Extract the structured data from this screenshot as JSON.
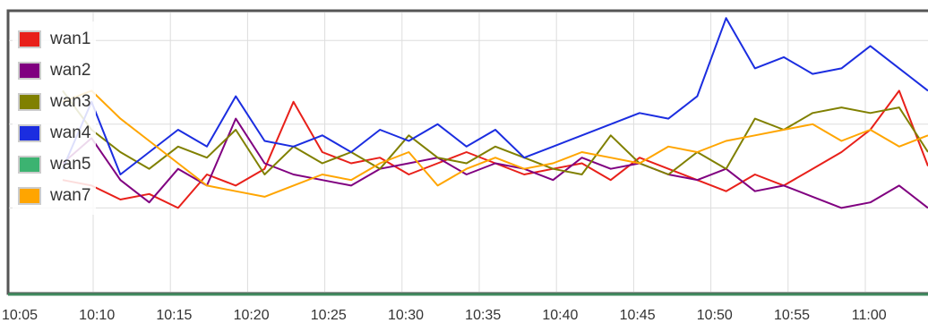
{
  "chart_data": {
    "type": "line",
    "title": "",
    "xlabel": "",
    "ylabel": "",
    "x_ticks": [
      "10:05",
      "10:10",
      "10:15",
      "10:20",
      "10:25",
      "10:30",
      "10:35",
      "10:40",
      "10:45",
      "10:50",
      "10:55",
      "11:00"
    ],
    "x_range_minutes": [
      0,
      60
    ],
    "y_range": [
      0,
      100
    ],
    "grid": true,
    "legend_position": "top-left",
    "series": [
      {
        "name": "wan1",
        "color": "#e8201a",
        "x": [
          0,
          2,
          4,
          6,
          8,
          10,
          12,
          14,
          16,
          18,
          20,
          22,
          24,
          26,
          28,
          30,
          32,
          34,
          36,
          38,
          40,
          42,
          44,
          46,
          48,
          50,
          52,
          54,
          56,
          58,
          60
        ],
        "y": [
          40,
          38,
          33,
          35,
          30,
          42,
          38,
          44,
          68,
          50,
          46,
          48,
          42,
          46,
          50,
          46,
          42,
          44,
          46,
          40,
          48,
          44,
          40,
          36,
          42,
          38,
          44,
          50,
          58,
          72,
          45
        ]
      },
      {
        "name": "wan2",
        "color": "#800080",
        "x": [
          0,
          2,
          4,
          6,
          8,
          10,
          12,
          14,
          16,
          18,
          20,
          22,
          24,
          26,
          28,
          30,
          32,
          34,
          36,
          38,
          40,
          42,
          44,
          46,
          48,
          50,
          52,
          54,
          56,
          58,
          60
        ],
        "y": [
          46,
          55,
          40,
          32,
          44,
          38,
          62,
          46,
          42,
          40,
          38,
          44,
          46,
          48,
          42,
          46,
          44,
          40,
          48,
          44,
          46,
          42,
          40,
          44,
          36,
          38,
          34,
          30,
          32,
          38,
          30
        ]
      },
      {
        "name": "wan3",
        "color": "#808000",
        "x": [
          0,
          2,
          4,
          6,
          8,
          10,
          12,
          14,
          16,
          18,
          20,
          22,
          24,
          26,
          28,
          30,
          32,
          34,
          36,
          38,
          40,
          42,
          44,
          46,
          48,
          50,
          52,
          54,
          56,
          58,
          60
        ],
        "y": [
          72,
          58,
          50,
          44,
          52,
          48,
          58,
          42,
          52,
          46,
          50,
          44,
          56,
          48,
          46,
          52,
          48,
          44,
          42,
          56,
          46,
          42,
          50,
          44,
          62,
          58,
          64,
          66,
          64,
          66,
          50
        ]
      },
      {
        "name": "wan4",
        "color": "#1b2de0",
        "x": [
          0,
          2,
          4,
          6,
          8,
          10,
          12,
          14,
          16,
          18,
          20,
          22,
          24,
          26,
          28,
          30,
          32,
          34,
          36,
          38,
          40,
          42,
          44,
          46,
          48,
          50,
          52,
          54,
          56,
          58,
          60
        ],
        "y": [
          44,
          68,
          42,
          50,
          58,
          52,
          70,
          54,
          52,
          56,
          50,
          58,
          54,
          60,
          52,
          58,
          48,
          52,
          56,
          60,
          64,
          62,
          70,
          98,
          80,
          84,
          78,
          80,
          88,
          80,
          72
        ]
      },
      {
        "name": "wan5",
        "color": "#3cb371",
        "x": [],
        "y": []
      },
      {
        "name": "wan7",
        "color": "#ffa500",
        "x": [
          0,
          2,
          4,
          6,
          8,
          10,
          12,
          14,
          16,
          18,
          20,
          22,
          24,
          26,
          28,
          30,
          32,
          34,
          36,
          38,
          40,
          42,
          44,
          46,
          48,
          50,
          52,
          54,
          56,
          58,
          60
        ],
        "y": [
          68,
          72,
          62,
          54,
          46,
          38,
          36,
          34,
          38,
          42,
          40,
          46,
          50,
          38,
          44,
          48,
          44,
          46,
          50,
          48,
          46,
          52,
          50,
          54,
          56,
          58,
          60,
          54,
          58,
          52,
          56
        ]
      }
    ]
  }
}
